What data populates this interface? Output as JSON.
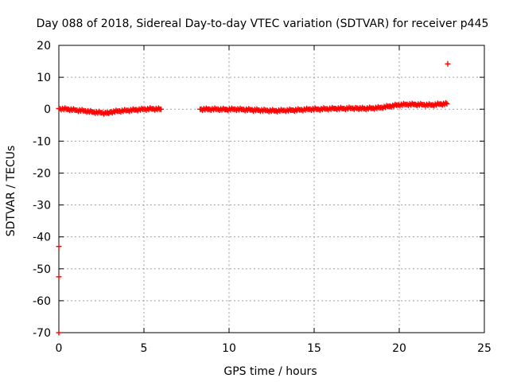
{
  "chart_data": {
    "type": "scatter",
    "title": "Day 088 of 2018, Sidereal Day-to-day VTEC variation (SDTVAR) for receiver p445",
    "xlabel": "GPS time / hours",
    "ylabel": "SDTVAR / TECUs",
    "xlim": [
      0,
      25
    ],
    "ylim": [
      -70,
      20
    ],
    "x_ticks": [
      "0",
      "5",
      "10",
      "15",
      "20",
      "25"
    ],
    "y_ticks": [
      "20",
      "10",
      "0",
      "-10",
      "-20",
      "-30",
      "-40",
      "-50",
      "-60",
      "-70"
    ],
    "grid": true,
    "legend": "none",
    "marker": "+",
    "color": "#ff0000",
    "series": [
      {
        "x": [
          0.0,
          0.5,
          1.0,
          1.5,
          2.0,
          2.5,
          2.8,
          3.0,
          3.5,
          4.0,
          4.5,
          5.0,
          5.5,
          6.0,
          8.3,
          8.8,
          9.3,
          9.8,
          10.3,
          10.8,
          11.3,
          11.7,
          12.2,
          12.7,
          13.2,
          13.7,
          14.2,
          14.7,
          15.2,
          15.7,
          16.2,
          16.7,
          17.2,
          17.5,
          17.9,
          18.4,
          18.9,
          19.4,
          19.9,
          20.4,
          20.9,
          21.4,
          21.9,
          22.4,
          22.8,
          22.85,
          0.0,
          0.0,
          0.0
        ],
        "y": [
          0.2,
          0.0,
          -0.3,
          -0.5,
          -0.9,
          -1.1,
          -1.2,
          -0.9,
          -0.6,
          -0.4,
          -0.2,
          0.0,
          0.1,
          0.0,
          0.0,
          0.0,
          0.0,
          -0.1,
          0.0,
          -0.1,
          -0.2,
          -0.3,
          -0.4,
          -0.5,
          -0.4,
          -0.3,
          -0.2,
          0.0,
          0.0,
          0.1,
          0.2,
          0.2,
          0.3,
          0.3,
          0.2,
          0.3,
          0.5,
          0.9,
          1.3,
          1.5,
          1.5,
          1.4,
          1.3,
          1.6,
          1.7,
          14.2,
          -43.0,
          -52.5,
          -70.0
        ]
      }
    ]
  }
}
